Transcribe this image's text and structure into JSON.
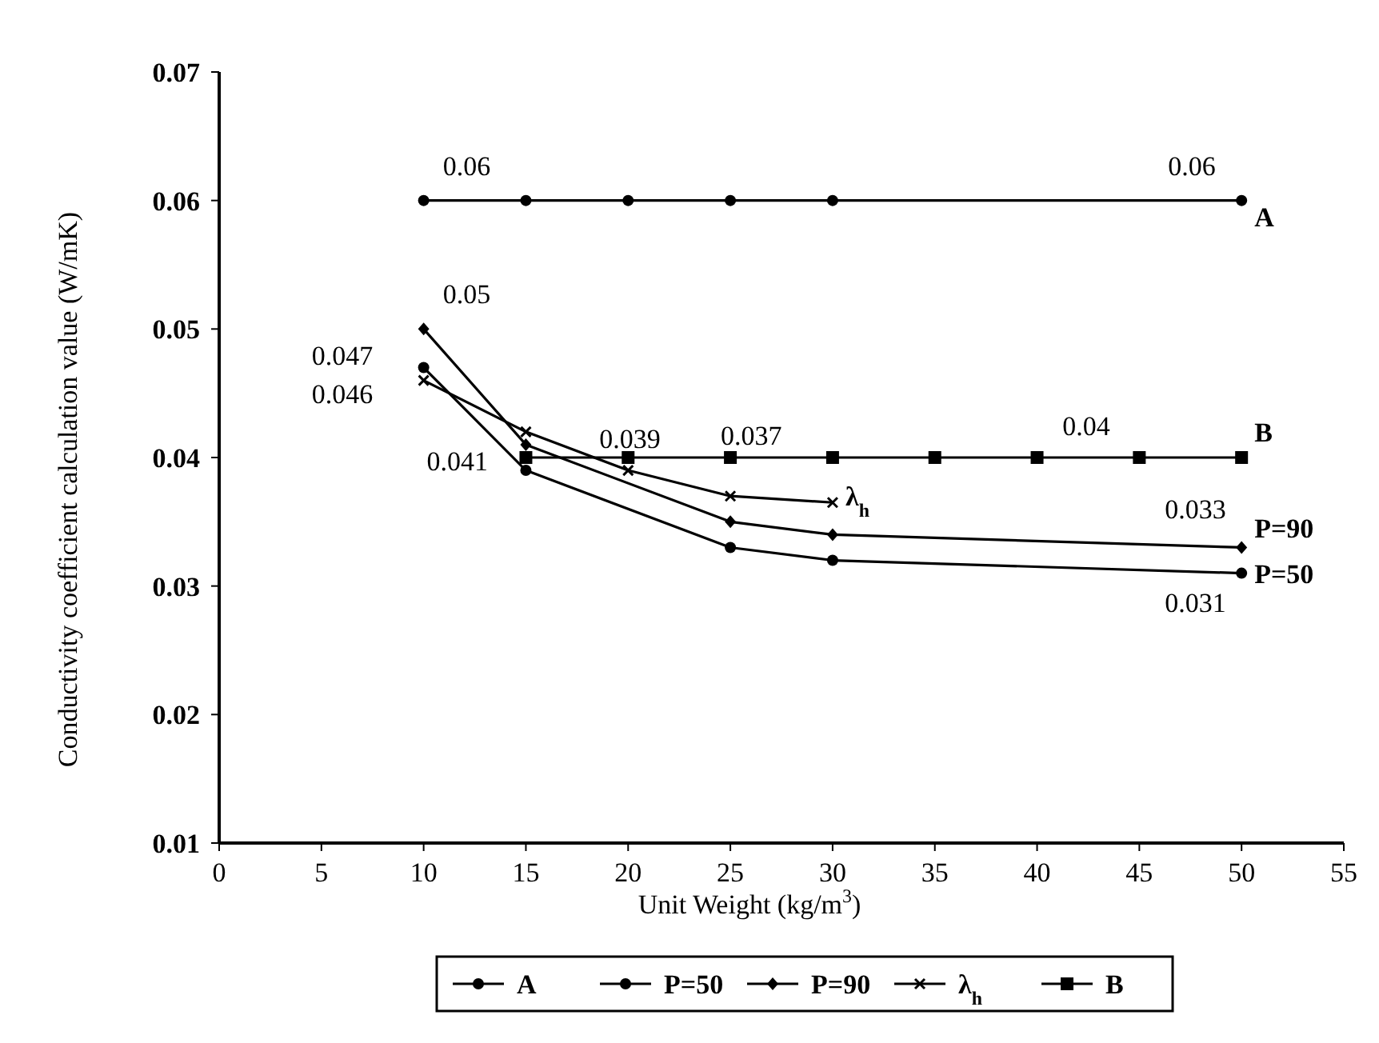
{
  "chart_data": {
    "type": "line",
    "xlabel": "Unit Weight (kg/m$^{3}$)",
    "ylabel": "Conductivity coefficient calculation value (W/mK)",
    "xlim": [
      0,
      55
    ],
    "xticks": [
      0,
      5,
      10,
      15,
      20,
      25,
      30,
      35,
      40,
      45,
      50,
      55
    ],
    "ylim": [
      0.01,
      0.07
    ],
    "yticks": [
      0.01,
      0.02,
      0.03,
      0.04,
      0.05,
      0.06,
      0.07
    ],
    "grid": false,
    "legend": "bottom",
    "series": [
      {
        "name": "A",
        "color": "#000000",
        "marker": "circle",
        "x": [
          10,
          15,
          20,
          25,
          30,
          50
        ],
        "values": [
          0.06,
          0.06,
          0.06,
          0.06,
          0.06,
          0.06
        ]
      },
      {
        "name": "P=50",
        "color": "#000000",
        "marker": "circle",
        "x": [
          10,
          15,
          25,
          30,
          50
        ],
        "values": [
          0.047,
          0.039,
          0.033,
          0.032,
          0.031
        ]
      },
      {
        "name": "P=90",
        "color": "#000000",
        "marker": "diamond",
        "x": [
          10,
          15,
          25,
          30,
          50
        ],
        "values": [
          0.05,
          0.041,
          0.035,
          0.034,
          0.033
        ]
      },
      {
        "name": "λ$_{h}$",
        "color": "#000000",
        "marker": "cross",
        "x": [
          10,
          15,
          20,
          25,
          30
        ],
        "values": [
          0.046,
          0.042,
          0.039,
          0.037,
          0.0365
        ]
      },
      {
        "name": "B",
        "color": "#000000",
        "marker": "square",
        "x": [
          15,
          20,
          25,
          30,
          35,
          40,
          45,
          50
        ],
        "values": [
          0.04,
          0.04,
          0.04,
          0.04,
          0.04,
          0.04,
          0.04,
          0.04
        ]
      }
    ],
    "annotations": [
      {
        "text": "0.06",
        "x": 10,
        "y": 0.06
      },
      {
        "text": "0.06",
        "x": 50,
        "y": 0.06
      },
      {
        "text": "0.05",
        "x": 10,
        "y": 0.05
      },
      {
        "text": "0.047",
        "x": 10,
        "y": 0.047
      },
      {
        "text": "0.046",
        "x": 10,
        "y": 0.046
      },
      {
        "text": "0.041",
        "x": 15,
        "y": 0.041
      },
      {
        "text": "0.039",
        "x": 20,
        "y": 0.039
      },
      {
        "text": "0.037",
        "x": 25,
        "y": 0.037
      },
      {
        "text": "0.04",
        "x": 45,
        "y": 0.04
      },
      {
        "text": "0.033",
        "x": 50,
        "y": 0.033
      },
      {
        "text": "0.031",
        "x": 50,
        "y": 0.031
      }
    ]
  }
}
